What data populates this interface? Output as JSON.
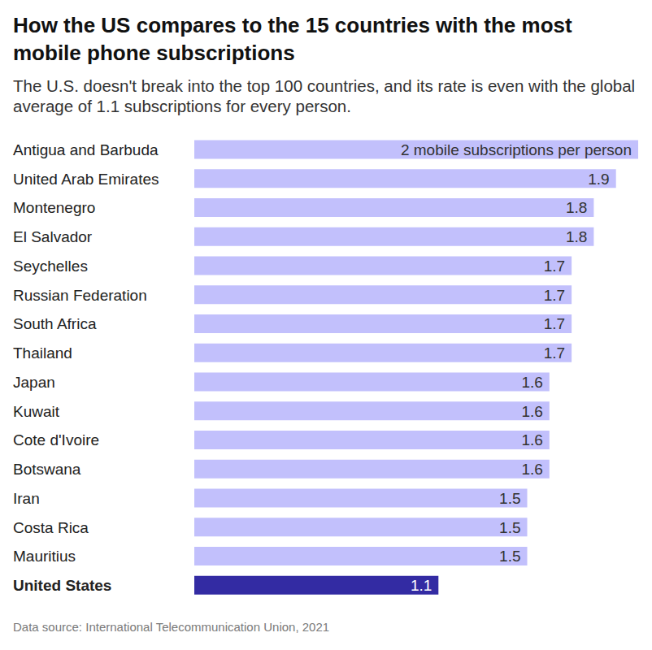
{
  "chart_data": {
    "type": "bar",
    "orientation": "horizontal",
    "title": "How the US compares to the 15 countries with the most mobile phone subscriptions",
    "subtitle": "The U.S. doesn't break into the top 100 countries, and its rate is even with the global average of 1.1 subscriptions for every person.",
    "source": "Data source: International Telecommunication Union, 2021",
    "categories": [
      "Antigua and Barbuda",
      "United Arab Emirates",
      "Montenegro",
      "El Salvador",
      "Seychelles",
      "Russian Federation",
      "South Africa",
      "Thailand",
      "Japan",
      "Kuwait",
      "Cote d'Ivoire",
      "Botswana",
      "Iran",
      "Costa Rica",
      "Mauritius",
      "United States"
    ],
    "values": [
      2,
      1.9,
      1.8,
      1.8,
      1.7,
      1.7,
      1.7,
      1.7,
      1.6,
      1.6,
      1.6,
      1.6,
      1.5,
      1.5,
      1.5,
      1.1
    ],
    "value_labels": [
      "2 mobile subscriptions per person",
      "1.9",
      "1.8",
      "1.8",
      "1.7",
      "1.7",
      "1.7",
      "1.7",
      "1.6",
      "1.6",
      "1.6",
      "1.6",
      "1.5",
      "1.5",
      "1.5",
      "1.1"
    ],
    "colors": [
      "#c2c0fc",
      "#c2c0fc",
      "#c2c0fc",
      "#c2c0fc",
      "#c2c0fc",
      "#c2c0fc",
      "#c2c0fc",
      "#c2c0fc",
      "#c2c0fc",
      "#c2c0fc",
      "#c2c0fc",
      "#c2c0fc",
      "#c2c0fc",
      "#c2c0fc",
      "#c2c0fc",
      "#332ba3"
    ],
    "xlim": [
      0,
      2
    ],
    "data_labels": true,
    "tick_labels": "y",
    "grid": false
  }
}
